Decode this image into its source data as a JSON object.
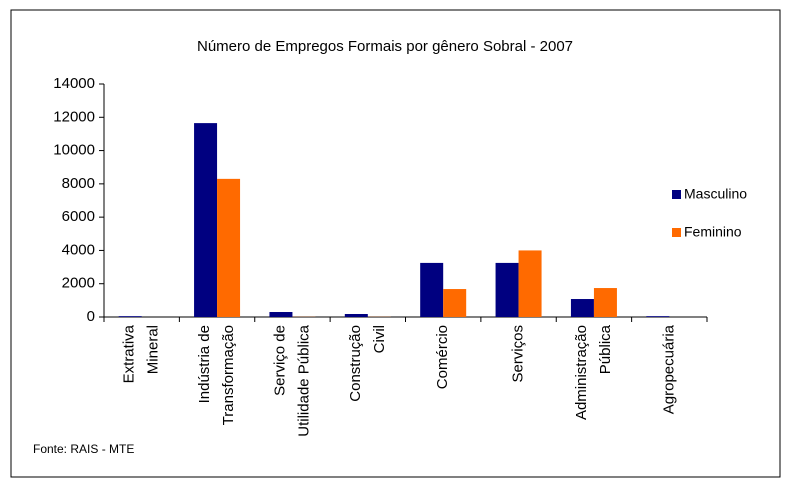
{
  "chart_data": {
    "type": "bar",
    "title": "Número de Empregos Formais por gênero Sobral - 2007",
    "categories": [
      [
        "Extrativa",
        "Mineral"
      ],
      [
        "Indústria de",
        "Transformação"
      ],
      [
        "Serviço de",
        "Utilidade Pública"
      ],
      [
        "Construção",
        "Civil"
      ],
      [
        "Comércio"
      ],
      [
        "Serviços"
      ],
      [
        "Administração",
        "Pública"
      ],
      [
        "Agropecuária"
      ]
    ],
    "series": [
      {
        "name": "Masculino",
        "color": "#000080",
        "values": [
          50,
          11650,
          300,
          180,
          3250,
          3250,
          1080,
          50
        ]
      },
      {
        "name": "Feminino",
        "color": "#ff6a00",
        "values": [
          0,
          8300,
          10,
          10,
          1680,
          4000,
          1740,
          0
        ]
      }
    ],
    "ylim": [
      0,
      14000
    ],
    "yticks": [
      0,
      2000,
      4000,
      6000,
      8000,
      10000,
      12000,
      14000
    ],
    "legend": "right",
    "source": "Fonte: RAIS - MTE"
  }
}
